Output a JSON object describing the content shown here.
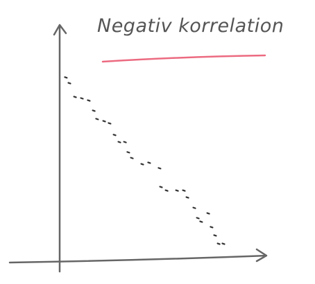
{
  "chart_data": {
    "type": "scatter",
    "title": "Negativ korrelation",
    "color": "#333333",
    "x": [
      3.3,
      5,
      7.7,
      11,
      14.3,
      16.7,
      18.3,
      21.7,
      24.3,
      26.7,
      29,
      31.7,
      33.3,
      35,
      40,
      43.3,
      48.3,
      49,
      51.7,
      56.7,
      60,
      61.7,
      65,
      66.7,
      68.3,
      71.7,
      73.3,
      75,
      76.7,
      79
    ],
    "y": [
      77.6,
      75.2,
      69.4,
      68.8,
      67.9,
      63.6,
      60.1,
      59.2,
      58.3,
      53.4,
      50.4,
      50.4,
      46.1,
      43.7,
      41.1,
      41.7,
      39.4,
      31.5,
      30,
      30,
      30,
      27.1,
      22.7,
      18.4,
      16.9,
      20.4,
      14.6,
      11.1,
      7.6,
      7.6
    ],
    "xlim": [
      0,
      100
    ],
    "ylim": [
      0,
      100
    ]
  }
}
